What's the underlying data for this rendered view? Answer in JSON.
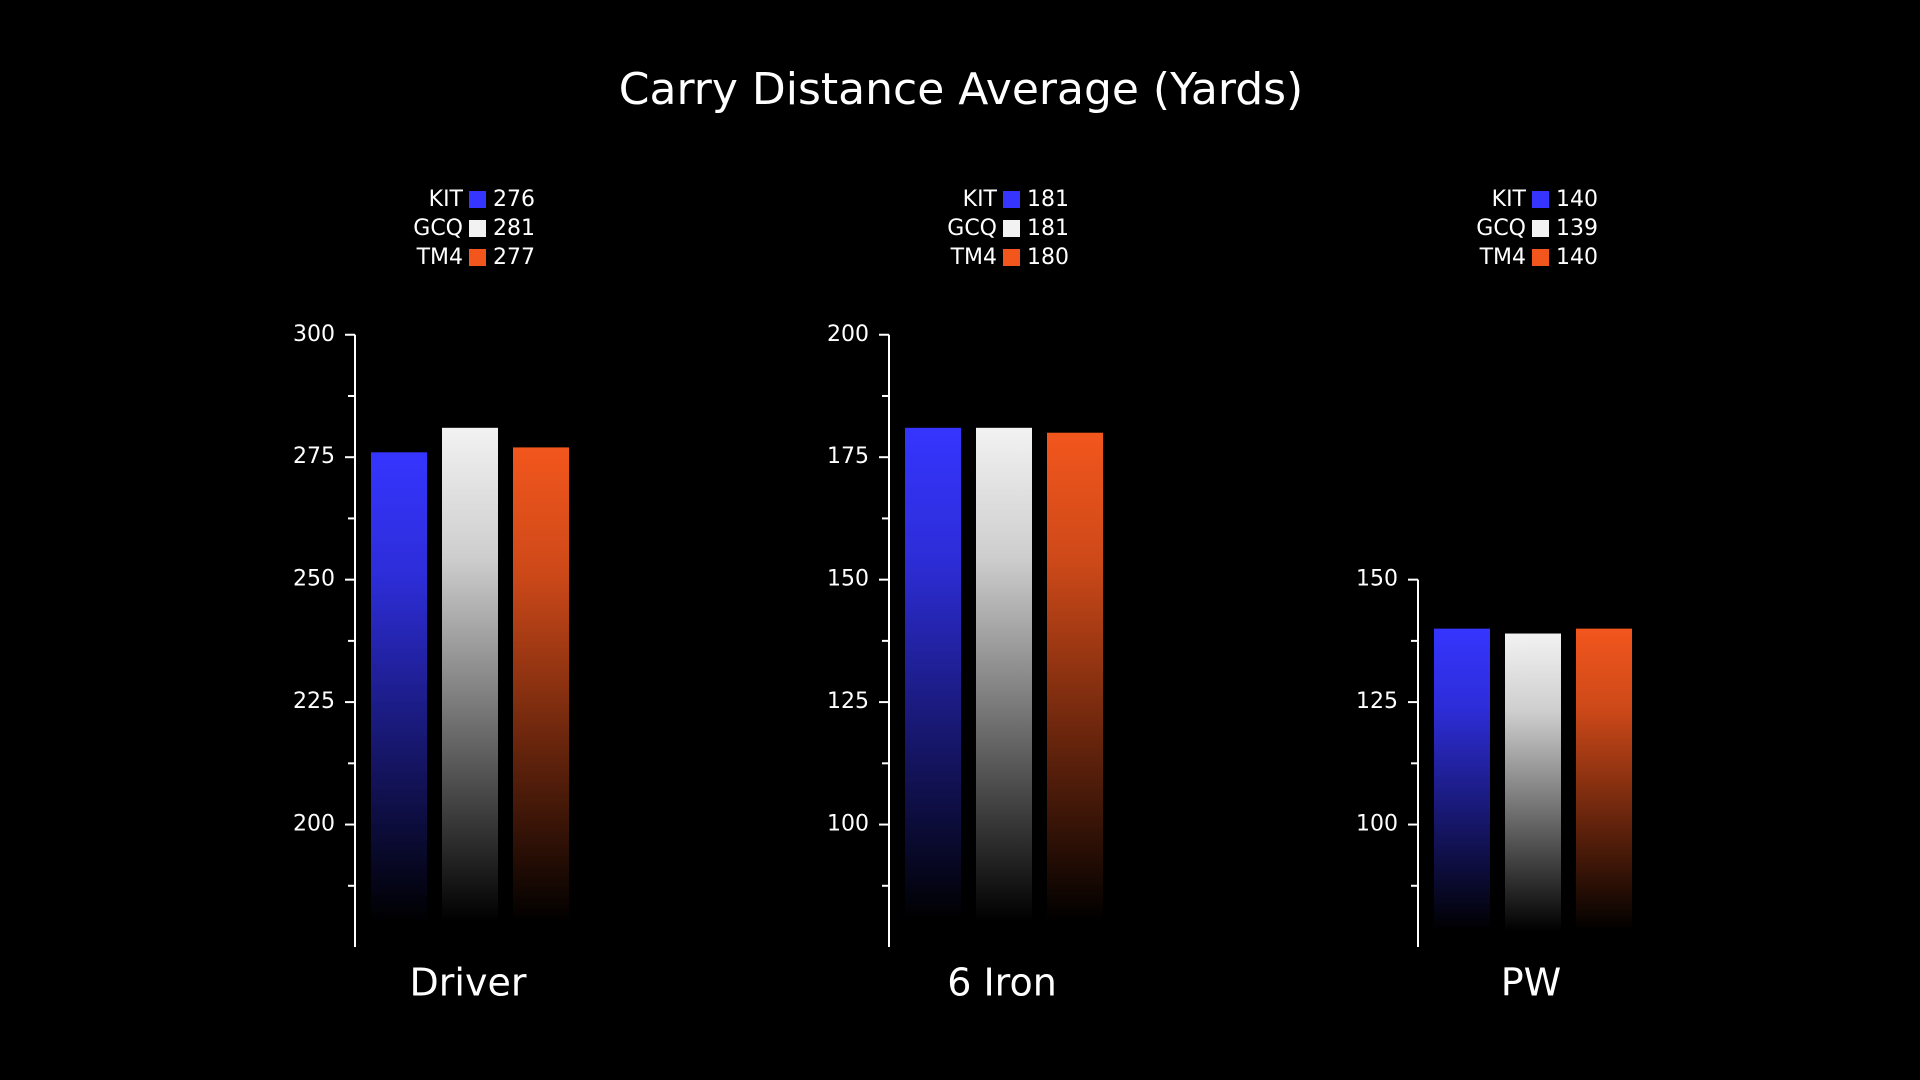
{
  "title": "Carry Distance Average (Yards)",
  "chart_data": [
    {
      "type": "bar",
      "categories": [
        "Driver"
      ],
      "series": [
        {
          "name": "KIT",
          "color": "#3535ff",
          "values": [
            276
          ]
        },
        {
          "name": "GCQ",
          "color": "#f2f2f2",
          "values": [
            281
          ]
        },
        {
          "name": "TM4",
          "color": "#f2561d",
          "values": [
            277
          ]
        }
      ],
      "ylim": [
        175,
        300
      ],
      "yticks": [
        200,
        225,
        250,
        275,
        300
      ],
      "minor_yticks": [
        187.5,
        212.5,
        237.5,
        262.5,
        287.5
      ]
    },
    {
      "type": "bar",
      "categories": [
        "6 Iron"
      ],
      "series": [
        {
          "name": "KIT",
          "color": "#3535ff",
          "values": [
            181
          ]
        },
        {
          "name": "GCQ",
          "color": "#f2f2f2",
          "values": [
            181
          ]
        },
        {
          "name": "TM4",
          "color": "#f2561d",
          "values": [
            180
          ]
        }
      ],
      "ylim": [
        75,
        200
      ],
      "yticks": [
        100,
        125,
        150,
        175,
        200
      ],
      "minor_yticks": [
        87.5,
        112.5,
        137.5,
        162.5,
        187.5
      ]
    },
    {
      "type": "bar",
      "categories": [
        "PW"
      ],
      "series": [
        {
          "name": "KIT",
          "color": "#3535ff",
          "values": [
            140
          ]
        },
        {
          "name": "GCQ",
          "color": "#f2f2f2",
          "values": [
            139
          ]
        },
        {
          "name": "TM4",
          "color": "#f2561d",
          "values": [
            140
          ]
        }
      ],
      "ylim": [
        75,
        150
      ],
      "yticks": [
        100,
        125,
        150
      ],
      "minor_yticks": [
        87.5,
        112.5,
        137.5
      ]
    }
  ]
}
